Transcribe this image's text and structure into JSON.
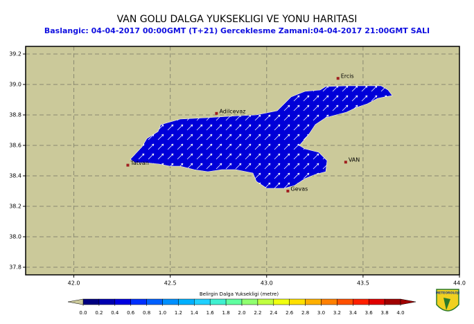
{
  "header": {
    "title": "VAN GOLU DALGA YUKSEKLIGI VE YONU HARITASI",
    "subtitle": "Baslangic: 04-04-2017 00:00GMT (T+21)  Gerceklesme Zamani:04-04-2017 21:00GMT SALI"
  },
  "map": {
    "xlim": [
      41.75,
      44.0
    ],
    "ylim": [
      37.75,
      39.25
    ],
    "xticks": [
      {
        "value": 42,
        "label": "42.0"
      },
      42.5,
      {
        "value": 43,
        "label": "43.0"
      },
      43.5,
      {
        "value": 44,
        "label": "44.0"
      }
    ],
    "yticks": [
      37.8,
      {
        "value": 38,
        "label": "38.0"
      },
      38.2,
      38.4,
      38.6,
      38.8,
      {
        "value": 39,
        "label": "39.0"
      },
      39.2
    ],
    "grid": true,
    "background": "#cbc99a",
    "lake_color": "#0000d8",
    "cities": [
      {
        "name": "Ercis",
        "lon": 43.37,
        "lat": 39.04
      },
      {
        "name": "Adilcevaz",
        "lon": 42.74,
        "lat": 38.81
      },
      {
        "name": "Tatvan",
        "lon": 42.28,
        "lat": 38.47
      },
      {
        "name": "VAN",
        "lon": 43.41,
        "lat": 38.49
      },
      {
        "name": "Gevas",
        "lon": 43.11,
        "lat": 38.3
      }
    ]
  },
  "colorbar": {
    "title": "Belirgin Dalga Yuksekligi (metre)",
    "range": [
      0,
      4
    ],
    "ticks": [
      {
        "value": 0,
        "label": "0.0"
      },
      0.2,
      0.4,
      0.6,
      0.8,
      {
        "value": 1,
        "label": "1.0"
      },
      1.2,
      1.4,
      1.6,
      1.8,
      {
        "value": 2,
        "label": "2.0"
      },
      2.2,
      2.4,
      2.6,
      2.8,
      {
        "value": 3,
        "label": "3.0"
      },
      3.2,
      3.4,
      3.6,
      3.8,
      {
        "value": 4,
        "label": "4.0"
      }
    ],
    "colors": [
      "#000080",
      "#0000b0",
      "#0000e0",
      "#0030ff",
      "#0060ff",
      "#0090ff",
      "#00b0ff",
      "#20d0ff",
      "#40f0d0",
      "#60ffa0",
      "#90ff70",
      "#c0ff40",
      "#f0ff10",
      "#ffe000",
      "#ffb000",
      "#ff8000",
      "#ff5000",
      "#ff2000",
      "#e00000",
      "#a00000"
    ]
  },
  "logo": {
    "text": "METEOROLOJI"
  }
}
